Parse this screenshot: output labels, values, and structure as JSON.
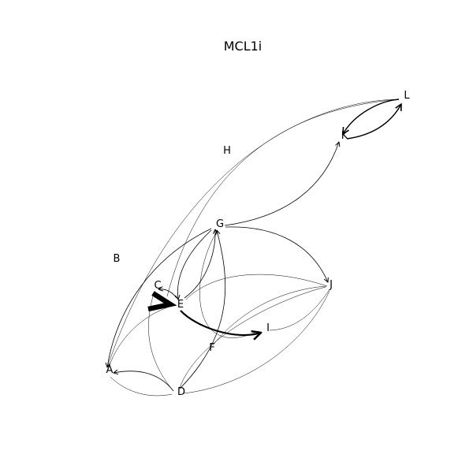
{
  "title": "MCL1i",
  "nodes": [
    {
      "id": "A",
      "label": "A"
    },
    {
      "id": "B",
      "label": "B"
    },
    {
      "id": "C",
      "label": "C"
    },
    {
      "id": "D",
      "label": "D"
    },
    {
      "id": "E",
      "label": "E"
    },
    {
      "id": "F",
      "label": "F"
    },
    {
      "id": "G",
      "label": "G"
    },
    {
      "id": "H",
      "label": "H"
    },
    {
      "id": "I",
      "label": "I"
    },
    {
      "id": "J",
      "label": "J"
    },
    {
      "id": "K",
      "label": "K"
    },
    {
      "id": "L",
      "label": "L"
    }
  ],
  "edges": [
    {
      "from": "L",
      "to": "K",
      "weight": "medium"
    },
    {
      "from": "K",
      "to": "L",
      "weight": "medium"
    },
    {
      "from": "G",
      "to": "K",
      "weight": "thin"
    },
    {
      "from": "L",
      "to": "A",
      "weight": "faint"
    },
    {
      "from": "L",
      "to": "E",
      "weight": "faint"
    },
    {
      "from": "G",
      "to": "A",
      "weight": "thin"
    },
    {
      "from": "G",
      "to": "E",
      "weight": "thin"
    },
    {
      "from": "E",
      "to": "G",
      "weight": "thin"
    },
    {
      "from": "D",
      "to": "G",
      "weight": "thin"
    },
    {
      "from": "G",
      "to": "J",
      "weight": "thin"
    },
    {
      "from": "G",
      "to": "I",
      "weight": "faint"
    },
    {
      "from": "C",
      "to": "E",
      "weight": "heavy"
    },
    {
      "from": "E",
      "to": "C",
      "weight": "thin"
    },
    {
      "from": "E",
      "to": "I",
      "weight": "bold"
    },
    {
      "from": "E",
      "to": "A",
      "weight": "faint"
    },
    {
      "from": "C",
      "to": "D",
      "weight": "faint"
    },
    {
      "from": "D",
      "to": "A",
      "weight": "thin"
    },
    {
      "from": "A",
      "to": "D",
      "weight": "faint"
    },
    {
      "from": "J",
      "to": "E",
      "weight": "faint"
    },
    {
      "from": "J",
      "to": "I",
      "weight": "faint"
    },
    {
      "from": "J",
      "to": "D",
      "weight": "faint"
    },
    {
      "from": "J",
      "to": "F",
      "weight": "faint"
    },
    {
      "from": "D",
      "to": "J",
      "weight": "faint"
    }
  ]
}
